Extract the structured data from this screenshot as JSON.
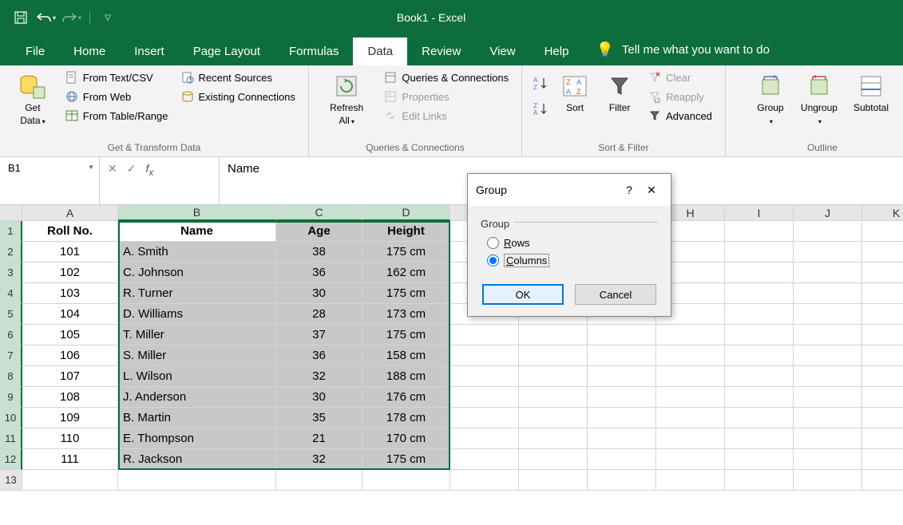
{
  "title": "Book1  -  Excel",
  "qat": {
    "save": "save",
    "undo": "undo",
    "redo": "redo"
  },
  "tabs": [
    "File",
    "Home",
    "Insert",
    "Page Layout",
    "Formulas",
    "Data",
    "Review",
    "View",
    "Help"
  ],
  "active_tab": "Data",
  "tell_me": "Tell me what you want to do",
  "ribbon": {
    "get_data": "Get Data",
    "from_text": "From Text/CSV",
    "from_web": "From Web",
    "from_table": "From Table/Range",
    "recent": "Recent Sources",
    "existing": "Existing Connections",
    "group1_label": "Get & Transform Data",
    "refresh": "Refresh All",
    "queries": "Queries & Connections",
    "properties": "Properties",
    "edit_links": "Edit Links",
    "group2_label": "Queries & Connections",
    "sort": "Sort",
    "filter": "Filter",
    "clear": "Clear",
    "reapply": "Reapply",
    "advanced": "Advanced",
    "group3_label": "Sort & Filter",
    "group": "Group",
    "ungroup": "Ungroup",
    "subtotal": "Subtotal",
    "group4_label": "Outline"
  },
  "name_box": "B1",
  "formula_value": "Name",
  "columns": [
    "A",
    "B",
    "C",
    "D",
    "E",
    "F",
    "G",
    "H",
    "I",
    "J",
    "K"
  ],
  "row_count": 13,
  "headers": {
    "roll": "Roll No.",
    "name": "Name",
    "age": "Age",
    "height": "Height"
  },
  "rows": [
    {
      "roll": "101",
      "name": "A. Smith",
      "age": "38",
      "height": "175 cm"
    },
    {
      "roll": "102",
      "name": "C. Johnson",
      "age": "36",
      "height": "162 cm"
    },
    {
      "roll": "103",
      "name": "R. Turner",
      "age": "30",
      "height": "175 cm"
    },
    {
      "roll": "104",
      "name": "D. Williams",
      "age": "28",
      "height": "173 cm"
    },
    {
      "roll": "105",
      "name": "T. Miller",
      "age": "37",
      "height": "175 cm"
    },
    {
      "roll": "106",
      "name": "S. Miller",
      "age": "36",
      "height": "158 cm"
    },
    {
      "roll": "107",
      "name": "L. Wilson",
      "age": "32",
      "height": "188 cm"
    },
    {
      "roll": "108",
      "name": "J. Anderson",
      "age": "30",
      "height": "176 cm"
    },
    {
      "roll": "109",
      "name": "B. Martin",
      "age": "35",
      "height": "178 cm"
    },
    {
      "roll": "110",
      "name": "E. Thompson",
      "age": "21",
      "height": "170 cm"
    },
    {
      "roll": "111",
      "name": "R. Jackson",
      "age": "32",
      "height": "175 cm"
    }
  ],
  "dialog": {
    "title": "Group",
    "group_label": "Group",
    "rows_label": "Rows",
    "columns_label": "Columns",
    "ok": "OK",
    "cancel": "Cancel",
    "help": "?",
    "close": "✕"
  },
  "colors": {
    "ribbon_green": "#0d6d3c",
    "selection_bg": "#c8c8c8",
    "header_sel": "#c8e0d0"
  }
}
